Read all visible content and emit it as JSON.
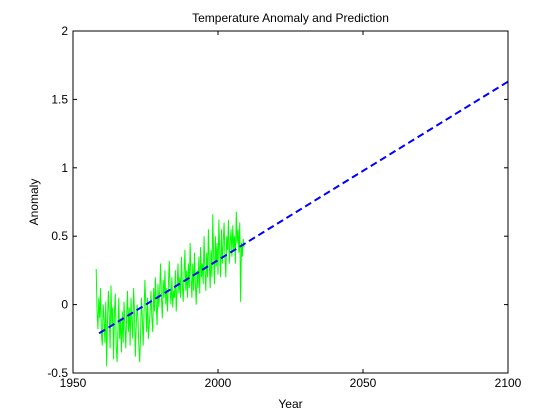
{
  "chart_data": {
    "type": "line",
    "title": "Temperature Anomaly and Prediction",
    "xlabel": "Year",
    "ylabel": "Anomaly",
    "xlim": [
      1950,
      2100
    ],
    "ylim": [
      -0.5,
      2
    ],
    "xticks": [
      1950,
      2000,
      2050,
      2100
    ],
    "yticks": [
      -0.5,
      0,
      0.5,
      1,
      1.5,
      2
    ],
    "ytick_labels": [
      "-0.5",
      "0",
      "0.5",
      "1",
      "1.5",
      "2"
    ],
    "grid": false,
    "series": [
      {
        "style": "solid",
        "color": "#00ff00",
        "x": [
          1958.0,
          1958.3,
          1958.6,
          1958.9,
          1959.2,
          1959.5,
          1959.8,
          1960.1,
          1960.4,
          1960.7,
          1961.0,
          1961.3,
          1961.6,
          1961.9,
          1962.2,
          1962.5,
          1962.8,
          1963.1,
          1963.4,
          1963.7,
          1964.0,
          1964.3,
          1964.6,
          1964.9,
          1965.2,
          1965.5,
          1965.8,
          1966.1,
          1966.4,
          1966.7,
          1967.0,
          1967.3,
          1967.6,
          1967.9,
          1968.2,
          1968.5,
          1968.8,
          1969.1,
          1969.4,
          1969.7,
          1970.0,
          1970.3,
          1970.6,
          1970.9,
          1971.2,
          1971.5,
          1971.8,
          1972.1,
          1972.4,
          1972.7,
          1973.0,
          1973.3,
          1973.6,
          1973.9,
          1974.2,
          1974.5,
          1974.8,
          1975.1,
          1975.4,
          1975.7,
          1976.0,
          1976.3,
          1976.6,
          1976.9,
          1977.2,
          1977.5,
          1977.8,
          1978.1,
          1978.4,
          1978.7,
          1979.0,
          1979.3,
          1979.6,
          1979.9,
          1980.2,
          1980.5,
          1980.8,
          1981.1,
          1981.4,
          1981.7,
          1982.0,
          1982.3,
          1982.6,
          1982.9,
          1983.2,
          1983.5,
          1983.8,
          1984.1,
          1984.4,
          1984.7,
          1985.0,
          1985.3,
          1985.6,
          1985.9,
          1986.2,
          1986.5,
          1986.8,
          1987.1,
          1987.4,
          1987.7,
          1988.0,
          1988.3,
          1988.6,
          1988.9,
          1989.2,
          1989.5,
          1989.8,
          1990.1,
          1990.4,
          1990.7,
          1991.0,
          1991.3,
          1991.6,
          1991.9,
          1992.2,
          1992.5,
          1992.8,
          1993.1,
          1993.4,
          1993.7,
          1994.0,
          1994.3,
          1994.6,
          1994.9,
          1995.2,
          1995.5,
          1995.8,
          1996.1,
          1996.4,
          1996.7,
          1997.0,
          1997.3,
          1997.6,
          1997.9,
          1998.2,
          1998.5,
          1998.8,
          1999.1,
          1999.4,
          1999.7,
          2000.0,
          2000.3,
          2000.6,
          2000.9,
          2001.2,
          2001.5,
          2001.8,
          2002.1,
          2002.4,
          2002.7,
          2003.0,
          2003.3,
          2003.6,
          2003.9,
          2004.2,
          2004.5,
          2004.8,
          2005.1,
          2005.4,
          2005.7,
          2006.0,
          2006.3,
          2006.6,
          2006.9,
          2007.2,
          2007.5,
          2007.8,
          2008.1,
          2008.4,
          2008.7,
          2009.0
        ],
        "y": [
          0.26,
          -0.05,
          -0.18,
          0.05,
          -0.1,
          0.12,
          -0.22,
          -0.3,
          0.0,
          -0.1,
          -0.28,
          0.02,
          -0.45,
          -0.12,
          0.1,
          -0.08,
          -0.32,
          0.14,
          -0.15,
          -0.02,
          -0.4,
          -0.05,
          0.08,
          -0.3,
          -0.42,
          -0.18,
          0.05,
          -0.25,
          -0.1,
          -0.35,
          -0.05,
          -0.28,
          0.02,
          -0.15,
          -0.32,
          -0.08,
          0.1,
          -0.2,
          -0.02,
          -0.3,
          0.05,
          -0.12,
          -0.25,
          0.12,
          -0.05,
          -0.38,
          -0.15,
          0.0,
          -0.1,
          -0.3,
          -0.42,
          -0.22,
          0.05,
          -0.1,
          -0.3,
          -0.05,
          0.18,
          0.0,
          -0.2,
          0.05,
          -0.25,
          -0.15,
          -0.05,
          0.1,
          -0.1,
          -0.2,
          0.12,
          -0.05,
          0.2,
          0.0,
          -0.15,
          0.15,
          -0.02,
          0.1,
          0.3,
          0.05,
          -0.1,
          0.18,
          0.05,
          0.25,
          0.0,
          0.12,
          -0.05,
          0.15,
          0.32,
          0.1,
          0.0,
          0.2,
          -0.02,
          0.1,
          0.05,
          0.25,
          -0.05,
          0.12,
          0.3,
          0.08,
          0.2,
          0.05,
          0.35,
          0.15,
          0.02,
          0.22,
          0.4,
          0.1,
          0.25,
          0.05,
          0.3,
          0.12,
          0.45,
          0.2,
          0.05,
          0.3,
          0.1,
          0.38,
          0.15,
          0.0,
          0.25,
          0.12,
          0.35,
          0.08,
          0.42,
          0.2,
          0.3,
          0.15,
          0.5,
          0.25,
          0.1,
          0.38,
          0.2,
          0.55,
          0.3,
          0.12,
          0.4,
          0.2,
          0.66,
          0.35,
          0.15,
          0.5,
          0.28,
          0.45,
          0.22,
          0.62,
          0.38,
          0.2,
          0.55,
          0.3,
          0.45,
          0.6,
          0.35,
          0.2,
          0.5,
          0.4,
          0.62,
          0.3,
          0.45,
          0.55,
          0.35,
          0.58,
          0.4,
          0.5,
          0.3,
          0.68,
          0.45,
          0.55,
          0.38,
          0.6,
          0.02,
          0.45,
          0.35,
          0.48,
          0.42
        ]
      },
      {
        "style": "dashed",
        "color": "#0000ff",
        "x": [
          1959,
          2100
        ],
        "y": [
          -0.21,
          1.63
        ]
      }
    ]
  }
}
